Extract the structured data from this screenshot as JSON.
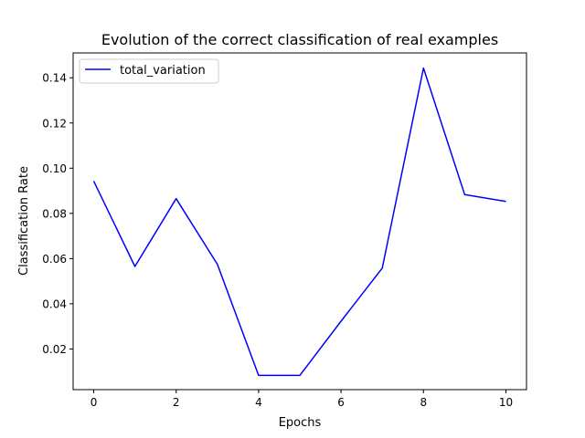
{
  "chart_data": {
    "type": "line",
    "title": "Evolution of the correct classification of real examples",
    "xlabel": "Epochs",
    "ylabel": "Classification Rate",
    "xlim": [
      -0.5,
      10.5
    ],
    "ylim": [
      0.002,
      0.151
    ],
    "xticks": [
      0,
      2,
      4,
      6,
      8,
      10
    ],
    "yticks": [
      0.02,
      0.04,
      0.06,
      0.08,
      0.1,
      0.12,
      0.14
    ],
    "xtick_labels": [
      "0",
      "2",
      "4",
      "6",
      "8",
      "10"
    ],
    "ytick_labels": [
      "0.02",
      "0.04",
      "0.06",
      "0.08",
      "0.10",
      "0.12",
      "0.14"
    ],
    "grid": false,
    "legend_position": "upper-left",
    "series": [
      {
        "name": "total_variation",
        "color": "#0000ff",
        "x": [
          0,
          1,
          2,
          3,
          4,
          5,
          6,
          7,
          8,
          9,
          10
        ],
        "y": [
          0.0943,
          0.0565,
          0.0865,
          0.0575,
          0.0083,
          0.0083,
          0.0323,
          0.0558,
          0.1443,
          0.0883,
          0.0853
        ]
      }
    ]
  }
}
